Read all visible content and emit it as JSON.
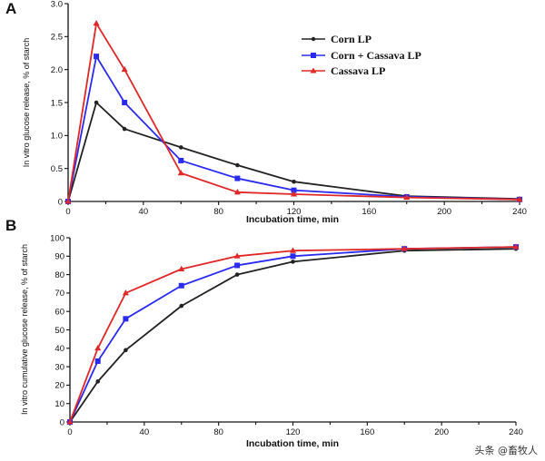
{
  "chart_data": [
    {
      "panel": "A",
      "type": "line",
      "title": "",
      "xlabel": "Incubation time, min",
      "ylabel": "In vitro glucose release, % of starch",
      "x": [
        0,
        15,
        30,
        60,
        90,
        120,
        180,
        240
      ],
      "xlim": [
        0,
        240
      ],
      "ylim": [
        0,
        3.0
      ],
      "xticks": [
        "0",
        "40",
        "80",
        "120",
        "160",
        "200",
        "240"
      ],
      "yticks": [
        "0",
        "0.5",
        "1.0",
        "1.5",
        "2.0",
        "2.5",
        "3.0"
      ],
      "legend_position": "top-right",
      "series": [
        {
          "name": "Corn LP",
          "color": "#222222",
          "marker": "circle",
          "values": [
            0,
            1.5,
            1.1,
            0.82,
            0.55,
            0.3,
            0.08,
            0.04
          ]
        },
        {
          "name": "Corn + Cassava LP",
          "color": "#2b2bf0",
          "marker": "square",
          "values": [
            0,
            2.2,
            1.5,
            0.62,
            0.35,
            0.17,
            0.07,
            0.03
          ]
        },
        {
          "name": "Cassava LP",
          "color": "#e02828",
          "marker": "triangle",
          "values": [
            0,
            2.7,
            2.0,
            0.43,
            0.14,
            0.11,
            0.06,
            0.03
          ]
        }
      ]
    },
    {
      "panel": "B",
      "type": "line",
      "title": "",
      "xlabel": "Incubation time, min",
      "ylabel": "In vitro cumulative glucose release, % of starch",
      "x": [
        0,
        15,
        30,
        60,
        90,
        120,
        180,
        240
      ],
      "xlim": [
        0,
        240
      ],
      "ylim": [
        0,
        100
      ],
      "xticks": [
        "0",
        "40",
        "80",
        "120",
        "160",
        "200",
        "240"
      ],
      "yticks": [
        "0",
        "10",
        "20",
        "30",
        "40",
        "50",
        "60",
        "70",
        "80",
        "90",
        "100"
      ],
      "series": [
        {
          "name": "Corn LP",
          "color": "#222222",
          "marker": "circle",
          "values": [
            0,
            22,
            39,
            63,
            80,
            87,
            93,
            94
          ]
        },
        {
          "name": "Corn + Cassava LP",
          "color": "#2b2bf0",
          "marker": "square",
          "values": [
            0,
            33,
            56,
            74,
            85,
            90,
            94,
            95
          ]
        },
        {
          "name": "Cassava LP",
          "color": "#e02828",
          "marker": "triangle",
          "values": [
            0,
            40,
            70,
            83,
            90,
            93,
            94,
            95
          ]
        }
      ]
    }
  ],
  "watermark": "头条 @畜牧人"
}
